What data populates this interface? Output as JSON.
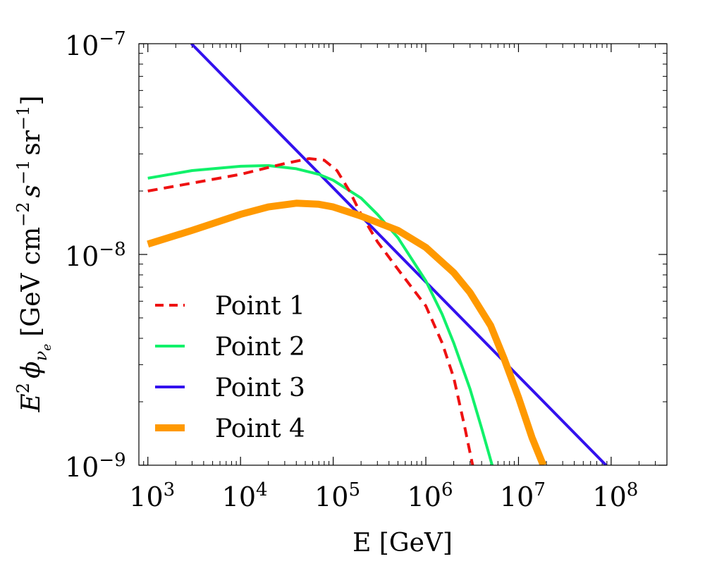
{
  "chart_data": {
    "type": "line",
    "x_scale": "log",
    "y_scale": "log",
    "xlim": [
      800,
      400000000
    ],
    "ylim": [
      1e-09,
      1e-07
    ],
    "xlabel": "E [GeV]",
    "ylabel": {
      "prefix": "E",
      "prefix_sup": "2",
      "phi": "ϕ",
      "phi_sub": "ν",
      "phi_subsub": "e",
      "units": "[GeV cm",
      "units_sup1": "−2",
      "units_s": "s",
      "units_sup2": "−1",
      "units_sr": "sr",
      "units_sup3": "−1",
      "units_close": "]"
    },
    "x_ticks": [
      {
        "value": 1000,
        "base": "10",
        "exp": "3"
      },
      {
        "value": 10000,
        "base": "10",
        "exp": "4"
      },
      {
        "value": 100000,
        "base": "10",
        "exp": "5"
      },
      {
        "value": 1000000,
        "base": "10",
        "exp": "6"
      },
      {
        "value": 10000000,
        "base": "10",
        "exp": "7"
      },
      {
        "value": 100000000,
        "base": "10",
        "exp": "8"
      }
    ],
    "y_ticks": [
      {
        "value": 1e-07,
        "base": "10",
        "exp": "−7"
      },
      {
        "value": 1e-08,
        "base": "10",
        "exp": "−8"
      },
      {
        "value": 1e-09,
        "base": "10",
        "exp": "−9"
      }
    ],
    "legend_position": "bottom-left",
    "series": [
      {
        "name": "Point 1",
        "color": "#ee1111",
        "style": "dashed",
        "width": 4,
        "x": [
          1000,
          3000,
          10000,
          30000,
          55000,
          80000,
          110000,
          150000,
          200000,
          300000,
          500000,
          1000000,
          1500000,
          2000000,
          2600000,
          3200000
        ],
        "y": [
          2e-08,
          2.18e-08,
          2.4e-08,
          2.7e-08,
          2.85e-08,
          2.8e-08,
          2.5e-08,
          2e-08,
          1.55e-08,
          1.15e-08,
          8.5e-09,
          5.7e-09,
          3.8e-09,
          2.6e-09,
          1.55e-09,
          1e-09
        ]
      },
      {
        "name": "Point 2",
        "color": "#11f16a",
        "style": "solid",
        "width": 4,
        "x": [
          1000,
          3000,
          10000,
          20000,
          40000,
          70000,
          100000,
          200000,
          300000,
          500000,
          1000000,
          1500000,
          2000000,
          3000000,
          4000000,
          5200000
        ],
        "y": [
          2.3e-08,
          2.5e-08,
          2.62e-08,
          2.64e-08,
          2.55e-08,
          2.4e-08,
          2.25e-08,
          1.85e-08,
          1.55e-08,
          1.2e-08,
          7.5e-09,
          5.2e-09,
          3.8e-09,
          2.3e-09,
          1.5e-09,
          1e-09
        ]
      },
      {
        "name": "Point 3",
        "color": "#3311ee",
        "style": "solid",
        "width": 4,
        "x": [
          2950,
          88000000
        ],
        "y": [
          1e-07,
          1e-09
        ]
      },
      {
        "name": "Point 4",
        "color": "#ff9900",
        "style": "solid",
        "width": 10,
        "x": [
          1000,
          3000,
          10000,
          20000,
          40000,
          70000,
          100000,
          200000,
          500000,
          1000000,
          2000000,
          3000000,
          5000000,
          7000000,
          10000000,
          14000000,
          18500000
        ],
        "y": [
          1.12e-08,
          1.3e-08,
          1.55e-08,
          1.68e-08,
          1.75e-08,
          1.73e-08,
          1.68e-08,
          1.52e-08,
          1.3e-08,
          1.08e-08,
          8.2e-09,
          6.6e-09,
          4.6e-09,
          3.2e-09,
          2.1e-09,
          1.35e-09,
          1e-09
        ]
      }
    ]
  }
}
